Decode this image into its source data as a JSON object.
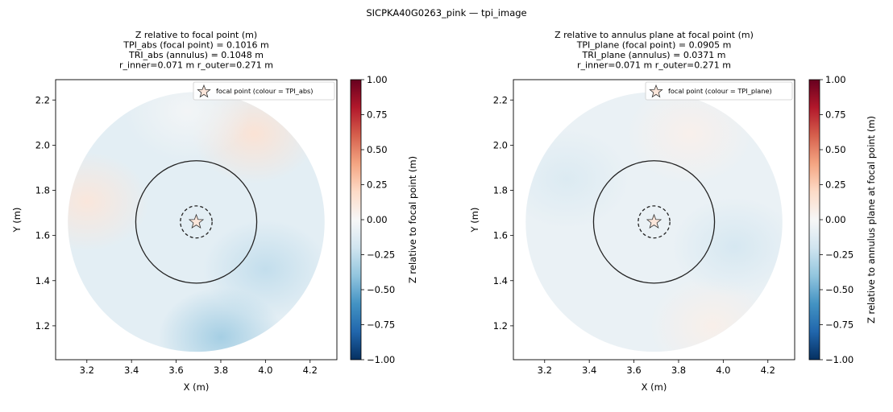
{
  "figure": {
    "suptitle": "SICPKA40G0263_pink — tpi_image"
  },
  "chart_data": [
    {
      "type": "heatmap",
      "title_lines": [
        "Z relative to focal point (m)",
        "TPI_abs (focal point) = 0.1016 m",
        "TRI_abs (annulus) = 0.1048 m",
        "r_inner=0.071 m  r_outer=0.271 m"
      ],
      "xlabel": "X (m)",
      "ylabel": "Y (m)",
      "xlim": [
        3.06,
        4.32
      ],
      "ylim": [
        1.05,
        2.29
      ],
      "xticks": [
        3.2,
        3.4,
        3.6,
        3.8,
        4.0,
        4.2
      ],
      "xtick_labels": [
        "3.2",
        "3.4",
        "3.6",
        "3.8",
        "4.0",
        "4.2"
      ],
      "yticks": [
        1.2,
        1.4,
        1.6,
        1.8,
        2.0,
        2.2
      ],
      "ytick_labels": [
        "1.2",
        "1.4",
        "1.6",
        "1.8",
        "2.0",
        "2.2"
      ],
      "focal_point": {
        "x": 3.69,
        "y": 1.66
      },
      "r_inner": 0.071,
      "r_outer": 0.271,
      "cloud_radius": 0.575,
      "legend": {
        "label": "focal point (colour = TPI_abs)",
        "placement": "upper right"
      },
      "colorbar": {
        "label": "Z relative to focal point (m)",
        "colormap": "RdBu_r",
        "range": [
          -1.0,
          1.0
        ],
        "ticks": [
          1.0,
          0.75,
          0.5,
          0.25,
          0.0,
          -0.25,
          -0.5,
          -0.75,
          -1.0
        ],
        "tick_labels": [
          "1.00",
          "0.75",
          "0.50",
          "0.25",
          "0.00",
          "−0.25",
          "−0.50",
          "−0.75",
          "−1.00"
        ]
      },
      "surface_blobs": [
        {
          "x": 3.2,
          "y": 1.75,
          "value": 0.12
        },
        {
          "x": 3.95,
          "y": 2.05,
          "value": 0.15
        },
        {
          "x": 4.0,
          "y": 1.45,
          "value": -0.25
        },
        {
          "x": 3.8,
          "y": 1.15,
          "value": -0.35
        },
        {
          "x": 3.65,
          "y": 2.15,
          "value": -0.02
        }
      ],
      "surface_base_value": -0.12
    },
    {
      "type": "heatmap",
      "title_lines": [
        "Z relative to annulus plane at focal point (m)",
        "TPI_plane (focal point) = 0.0905 m",
        "TRI_plane (annulus) = 0.0371 m",
        "r_inner=0.071 m  r_outer=0.271 m"
      ],
      "xlabel": "X (m)",
      "ylabel": "Y (m)",
      "xlim": [
        3.06,
        4.32
      ],
      "ylim": [
        1.05,
        2.29
      ],
      "xticks": [
        3.2,
        3.4,
        3.6,
        3.8,
        4.0,
        4.2
      ],
      "xtick_labels": [
        "3.2",
        "3.4",
        "3.6",
        "3.8",
        "4.0",
        "4.2"
      ],
      "yticks": [
        1.2,
        1.4,
        1.6,
        1.8,
        2.0,
        2.2
      ],
      "ytick_labels": [
        "1.2",
        "1.4",
        "1.6",
        "1.8",
        "2.0",
        "2.2"
      ],
      "focal_point": {
        "x": 3.69,
        "y": 1.66
      },
      "r_inner": 0.071,
      "r_outer": 0.271,
      "cloud_radius": 0.575,
      "legend": {
        "label": "focal point (colour = TPI_plane)",
        "placement": "upper right"
      },
      "colorbar": {
        "label": "Z relative to annulus plane at focal point (m)",
        "colormap": "RdBu_r",
        "range": [
          -1.0,
          1.0
        ],
        "ticks": [
          1.0,
          0.75,
          0.5,
          0.25,
          0.0,
          -0.25,
          -0.5,
          -0.75,
          -1.0
        ],
        "tick_labels": [
          "1.00",
          "0.75",
          "0.50",
          "0.25",
          "0.00",
          "−0.25",
          "−0.50",
          "−0.75",
          "−1.00"
        ]
      },
      "surface_blobs": [
        {
          "x": 3.3,
          "y": 1.85,
          "value": -0.15
        },
        {
          "x": 3.85,
          "y": 2.05,
          "value": 0.05
        },
        {
          "x": 3.95,
          "y": 1.2,
          "value": 0.06
        },
        {
          "x": 4.05,
          "y": 1.55,
          "value": -0.18
        }
      ],
      "surface_base_value": -0.08
    }
  ]
}
